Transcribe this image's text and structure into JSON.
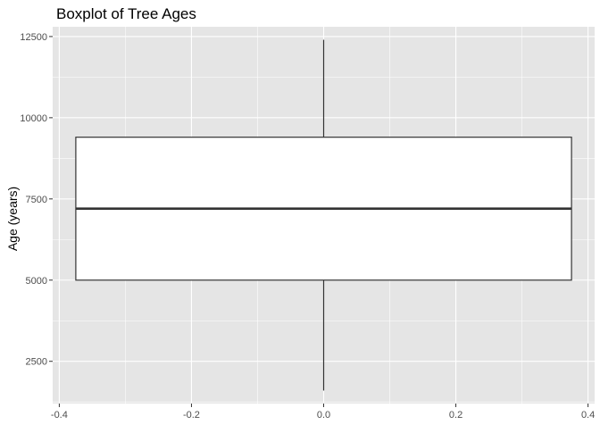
{
  "chart_data": {
    "type": "boxplot",
    "title": "Boxplot of Tree Ages",
    "xlabel": "",
    "ylabel": "Age (years)",
    "xlim": [
      -0.41,
      0.41
    ],
    "ylim": [
      1200,
      12800
    ],
    "x_ticks": [
      -0.4,
      -0.2,
      0.0,
      0.2,
      0.4
    ],
    "x_tick_labels": [
      "-0.4",
      "-0.2",
      "0.0",
      "0.2",
      "0.4"
    ],
    "y_ticks": [
      2500,
      5000,
      7500,
      10000,
      12500
    ],
    "y_tick_labels": [
      "2500",
      "5000",
      "7500",
      "10000",
      "12500"
    ],
    "grid": true,
    "box": {
      "x_center": 0.0,
      "x_min": -0.375,
      "x_max": 0.375,
      "whisker_low": 1600,
      "q1": 5000,
      "median": 7200,
      "q3": 9400,
      "whisker_high": 12400
    },
    "colors": {
      "panel_background": "#e5e5e5",
      "grid_major": "#ffffff",
      "box_fill": "#ffffff",
      "box_stroke": "#333333"
    }
  }
}
